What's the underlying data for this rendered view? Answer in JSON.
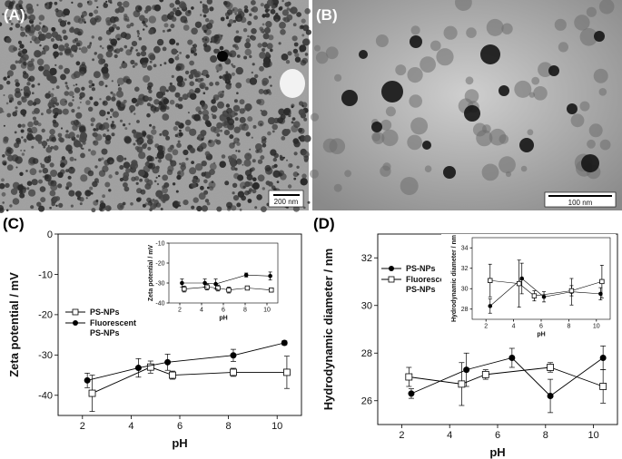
{
  "panels": {
    "A": {
      "label": "(A)",
      "scale_bar": "200 nm"
    },
    "B": {
      "label": "(B)",
      "scale_bar": "100 nm"
    },
    "C": {
      "label": "(C)"
    },
    "D": {
      "label": "(D)"
    }
  },
  "chart_data": [
    {
      "id": "C-main",
      "type": "line",
      "xlabel": "pH",
      "ylabel": "Zeta potential / mV",
      "xlim": [
        1,
        11
      ],
      "ylim": [
        -45,
        0
      ],
      "xticks": [
        2,
        4,
        6,
        8,
        10
      ],
      "yticks": [
        0,
        -10,
        -20,
        -30,
        -40
      ],
      "ytick_labels": [
        "0",
        "-10",
        "-20",
        "-30",
        "-40"
      ],
      "legend_position": "left",
      "series": [
        {
          "name": "PS-NPs",
          "marker": "open-square",
          "x": [
            2.4,
            4.8,
            5.7,
            8.2,
            10.4
          ],
          "y": [
            -39.5,
            -33,
            -35,
            -34.3,
            -34.3
          ],
          "err": [
            4.5,
            1.5,
            1.0,
            1.0,
            4.0
          ]
        },
        {
          "name": "Fluorescent PS-NPs",
          "marker": "filled-circle",
          "x": [
            2.2,
            4.3,
            5.5,
            8.2,
            10.3
          ],
          "y": [
            -36.3,
            -33.2,
            -31.8,
            -30.1,
            -27
          ],
          "err": [
            1.8,
            2.3,
            2.0,
            1.5,
            0.5
          ]
        }
      ],
      "inset": {
        "xlabel": "pH",
        "ylabel": "Zeta potential / mV",
        "xlim": [
          1,
          11
        ],
        "ylim": [
          -40,
          -10
        ],
        "xticks": [
          2,
          4,
          6,
          8,
          10
        ],
        "yticks": [
          -10,
          -20,
          -30,
          -40
        ],
        "ytick_labels": [
          "-10",
          "-20",
          "-30",
          "-40"
        ],
        "series": [
          {
            "name": "PS-NPs",
            "marker": "open-square",
            "x": [
              2.4,
              4.5,
              5.5,
              6.5,
              8.2,
              10.4
            ],
            "y": [
              -33,
              -32,
              -32.5,
              -33.5,
              -32.5,
              -33.5
            ],
            "err": [
              1.5,
              1.5,
              1.5,
              1.5,
              1.0,
              1.0
            ]
          },
          {
            "name": "Fluorescent PS-NPs",
            "marker": "filled-circle",
            "x": [
              2.2,
              4.3,
              5.3,
              8.1,
              10.3
            ],
            "y": [
              -30,
              -30,
              -30.5,
              -26,
              -26.5
            ],
            "err": [
              2.0,
              2.0,
              2.5,
              1.0,
              2.0
            ]
          }
        ]
      }
    },
    {
      "id": "D-main",
      "type": "line",
      "xlabel": "pH",
      "ylabel": "Hydrodynamic diameter / nm",
      "xlim": [
        1,
        11
      ],
      "ylim": [
        25,
        33
      ],
      "xticks": [
        2,
        4,
        6,
        8,
        10
      ],
      "yticks": [
        26,
        28,
        30,
        32
      ],
      "ytick_labels": [
        "26",
        "28",
        "30",
        "32"
      ],
      "legend_position": "left",
      "series": [
        {
          "name": "PS-NPs",
          "marker": "filled-circle",
          "x": [
            2.4,
            4.7,
            6.6,
            8.2,
            10.4
          ],
          "y": [
            26.3,
            27.3,
            27.8,
            26.2,
            27.8
          ],
          "err": [
            0.2,
            0.7,
            0.4,
            0.7,
            0.5
          ]
        },
        {
          "name": "Fluorescent PS-NPs",
          "marker": "open-square",
          "x": [
            2.3,
            4.5,
            5.5,
            8.2,
            10.4
          ],
          "y": [
            27.0,
            26.7,
            27.1,
            27.4,
            26.6
          ],
          "err": [
            0.4,
            0.9,
            0.2,
            0.2,
            0.7
          ]
        }
      ],
      "inset": {
        "xlabel": "pH",
        "ylabel": "Hydrodynamic diameter / nm",
        "xlim": [
          1,
          11
        ],
        "ylim": [
          27,
          35
        ],
        "xticks": [
          2,
          4,
          6,
          8,
          10
        ],
        "yticks": [
          28,
          30,
          32,
          34
        ],
        "ytick_labels": [
          "28",
          "30",
          "32",
          "34"
        ],
        "series": [
          {
            "name": "PS-NPs",
            "marker": "filled-circle",
            "x": [
              2.3,
              4.6,
              6.2,
              8.2,
              10.3
            ],
            "y": [
              28.3,
              31,
              29.2,
              29.7,
              29.5
            ],
            "err": [
              0.7,
              1.5,
              0.5,
              1.3,
              0.6
            ]
          },
          {
            "name": "Fluorescent PS-NPs",
            "marker": "open-square",
            "x": [
              2.3,
              4.4,
              5.5,
              8.2,
              10.4
            ],
            "y": [
              30.8,
              30.5,
              29.3,
              29.8,
              30.7
            ],
            "err": [
              1.6,
              2.3,
              0.5,
              0.5,
              1.6
            ]
          }
        ]
      }
    }
  ]
}
